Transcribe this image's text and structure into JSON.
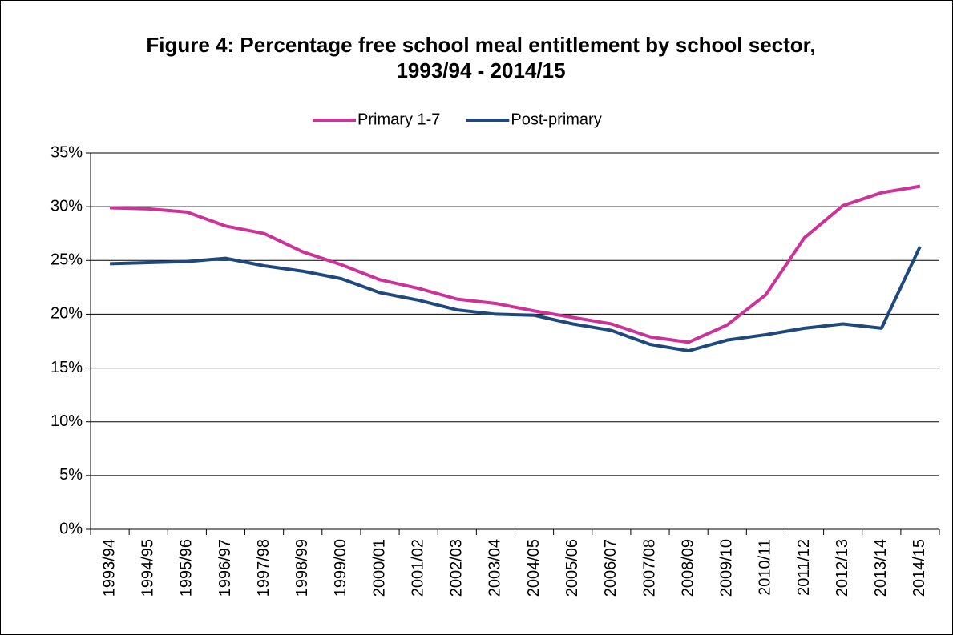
{
  "chart_data": {
    "type": "line",
    "title": "Figure 4: Percentage free school meal entitlement by school sector, 1993/94 - 2014/15",
    "categories": [
      "1993/94",
      "1994/95",
      "1995/96",
      "1996/97",
      "1997/98",
      "1998/99",
      "1999/00",
      "2000/01",
      "2001/02",
      "2002/03",
      "2003/04",
      "2004/05",
      "2005/06",
      "2006/07",
      "2007/08",
      "2008/09",
      "2009/10",
      "2010/11",
      "2011/12",
      "2012/13",
      "2013/14",
      "2014/15"
    ],
    "series": [
      {
        "name": "Primary 1-7",
        "color": "#cc3399",
        "values": [
          29.9,
          29.8,
          29.5,
          28.2,
          27.5,
          25.8,
          24.6,
          23.2,
          22.4,
          21.4,
          21.0,
          20.3,
          19.7,
          19.1,
          17.9,
          17.4,
          19.0,
          21.8,
          27.1,
          30.1,
          31.3,
          31.9
        ]
      },
      {
        "name": "Post-primary",
        "color": "#1f497d",
        "values": [
          24.7,
          24.8,
          24.9,
          25.2,
          24.5,
          24.0,
          23.3,
          22.0,
          21.3,
          20.4,
          20.0,
          19.9,
          19.1,
          18.5,
          17.2,
          16.6,
          17.6,
          18.1,
          18.7,
          19.1,
          18.7,
          26.3
        ]
      }
    ],
    "ylim": [
      0,
      35
    ],
    "yticks": [
      {
        "value": 0,
        "label": "0%"
      },
      {
        "value": 5,
        "label": "5%"
      },
      {
        "value": 10,
        "label": "10%"
      },
      {
        "value": 15,
        "label": "15%"
      },
      {
        "value": 20,
        "label": "20%"
      },
      {
        "value": 25,
        "label": "25%"
      },
      {
        "value": 30,
        "label": "30%"
      },
      {
        "value": 35,
        "label": "35%"
      }
    ],
    "grid": true,
    "legend": "top"
  }
}
